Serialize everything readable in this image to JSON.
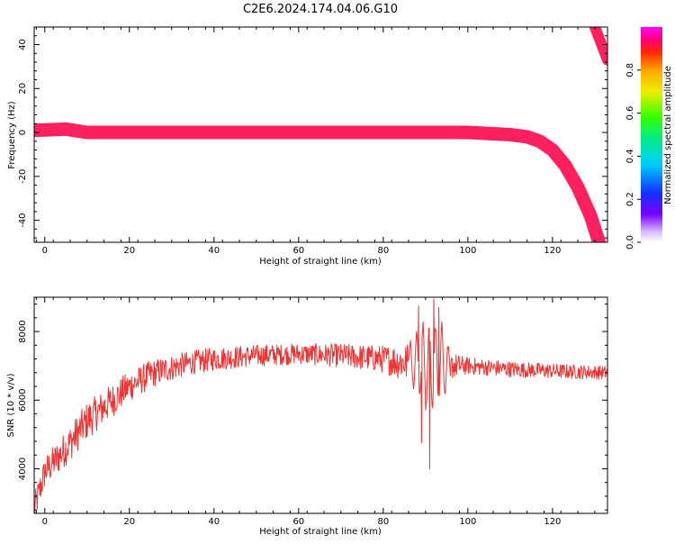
{
  "title": "C2E6.2024.174.04.06.G10",
  "colors": {
    "snr_line": "#ee3333",
    "ridge": [
      "#ff2060",
      "#ff8800",
      "#ffee00",
      "#55ff00",
      "#00e080",
      "#00ccff",
      "#2255ff",
      "#6600ff",
      "#cc99ff"
    ]
  },
  "chart_data": [
    {
      "type": "heatmap",
      "xlabel": "Height of straight line (km)",
      "ylabel": "Frequency (Hz)",
      "xlim": [
        -2.5,
        133
      ],
      "ylim": [
        -50,
        48
      ],
      "xticks": [
        "0",
        "20",
        "40",
        "60",
        "80",
        "100",
        "120"
      ],
      "xtick_values": [
        0,
        20,
        40,
        60,
        80,
        100,
        120
      ],
      "yticks": [
        "-40",
        "-20",
        "0",
        "20",
        "40"
      ],
      "ytick_values": [
        -40,
        -20,
        0,
        20,
        40
      ],
      "colorbar": {
        "label": "Normalized spectral amplitude",
        "range": [
          0,
          1
        ],
        "ticks": [
          "0.0",
          "0.2",
          "0.4",
          "0.6",
          "0.8"
        ],
        "tick_values": [
          0,
          0.2,
          0.4,
          0.6,
          0.8
        ],
        "colormap": "gist_ncar-like (white-purple-blue-cyan-green-yellow-orange-red-magenta)"
      },
      "ridge": {
        "description": "Frequency trace near 0 Hz from -2 to ~110 km, then curving down to about -50 Hz at ~131 km; a second branch from ~48 Hz to ~32 Hz at 130-133 km",
        "points": [
          {
            "x": -2,
            "y": 1
          },
          {
            "x": 5,
            "y": 1.5
          },
          {
            "x": 10,
            "y": 0
          },
          {
            "x": 40,
            "y": 0
          },
          {
            "x": 70,
            "y": 0
          },
          {
            "x": 100,
            "y": 0
          },
          {
            "x": 110,
            "y": -1
          },
          {
            "x": 114,
            "y": -2
          },
          {
            "x": 117,
            "y": -4
          },
          {
            "x": 120,
            "y": -8
          },
          {
            "x": 123,
            "y": -15
          },
          {
            "x": 126,
            "y": -25
          },
          {
            "x": 129,
            "y": -38
          },
          {
            "x": 131,
            "y": -50
          }
        ],
        "upper_branch": [
          {
            "x": 130,
            "y": 48
          },
          {
            "x": 133,
            "y": 33
          }
        ]
      }
    },
    {
      "type": "line",
      "xlabel": "Height of straight line (km)",
      "ylabel": "SNR (10 * v/v)",
      "xlim": [
        -2.5,
        133
      ],
      "ylim": [
        2700,
        9000
      ],
      "xticks": [
        "0",
        "20",
        "40",
        "60",
        "80",
        "100",
        "120"
      ],
      "xtick_values": [
        0,
        20,
        40,
        60,
        80,
        100,
        120
      ],
      "yticks": [
        "4000",
        "6000",
        "8000"
      ],
      "ytick_values": [
        4000,
        6000,
        8000
      ],
      "series": [
        {
          "trend": [
            {
              "x": -2.5,
              "y": 2800
            },
            {
              "x": 0,
              "y": 3900
            },
            {
              "x": 5,
              "y": 4600
            },
            {
              "x": 10,
              "y": 5400
            },
            {
              "x": 15,
              "y": 5900
            },
            {
              "x": 20,
              "y": 6400
            },
            {
              "x": 25,
              "y": 6750
            },
            {
              "x": 30,
              "y": 6950
            },
            {
              "x": 35,
              "y": 7100
            },
            {
              "x": 40,
              "y": 7200
            },
            {
              "x": 50,
              "y": 7300
            },
            {
              "x": 60,
              "y": 7350
            },
            {
              "x": 70,
              "y": 7300
            },
            {
              "x": 80,
              "y": 7200
            },
            {
              "x": 85,
              "y": 7100
            },
            {
              "x": 90,
              "y": 7050
            },
            {
              "x": 95,
              "y": 7000
            },
            {
              "x": 100,
              "y": 7000
            },
            {
              "x": 110,
              "y": 6900
            },
            {
              "x": 120,
              "y": 6850
            },
            {
              "x": 133,
              "y": 6800
            }
          ],
          "noise": [
            {
              "x": -2.5,
              "y": 450
            },
            {
              "x": 10,
              "y": 550
            },
            {
              "x": 20,
              "y": 450
            },
            {
              "x": 35,
              "y": 350
            },
            {
              "x": 60,
              "y": 300
            },
            {
              "x": 80,
              "y": 400
            },
            {
              "x": 86,
              "y": 600
            },
            {
              "x": 90,
              "y": 1500
            },
            {
              "x": 94,
              "y": 1300
            },
            {
              "x": 96,
              "y": 400
            },
            {
              "x": 100,
              "y": 250
            },
            {
              "x": 133,
              "y": 200
            }
          ],
          "extremes": [
            {
              "x": 91.0,
              "y": 4000
            },
            {
              "x": 91.9,
              "y": 8950
            },
            {
              "x": 88.3,
              "y": 8750
            },
            {
              "x": 89.1,
              "y": 4750
            },
            {
              "x": 93.2,
              "y": 8700
            },
            {
              "x": -2.5,
              "y": 2800
            }
          ]
        }
      ]
    }
  ]
}
